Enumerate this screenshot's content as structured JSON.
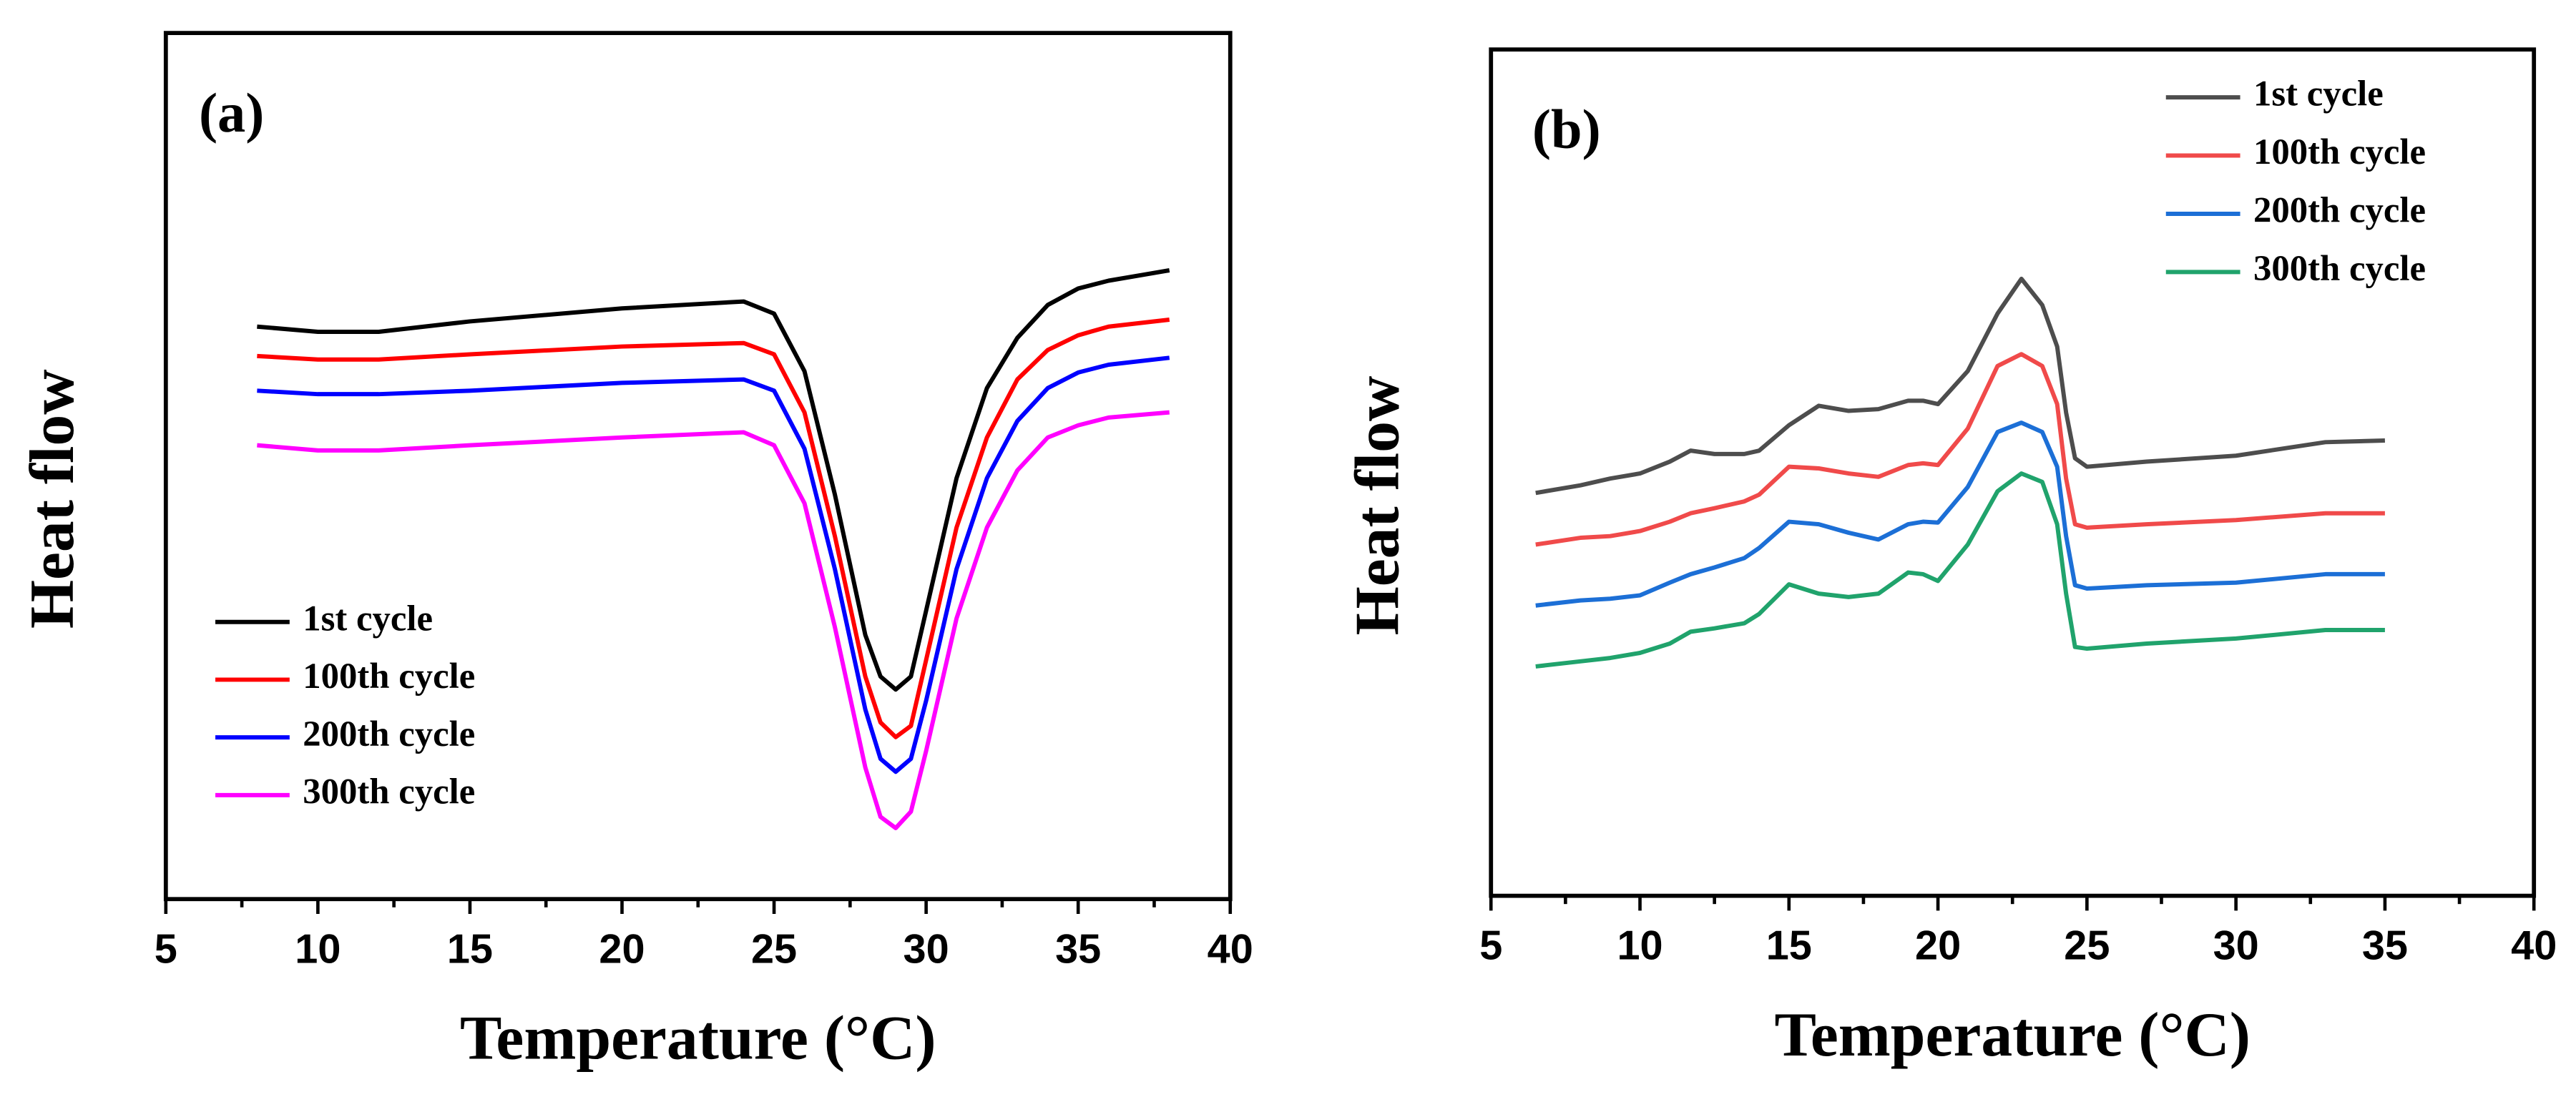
{
  "chart_data": [
    {
      "type": "line",
      "panel_label": "(a)",
      "x_label": "Temperature (°C)",
      "y_label": "Heat flow",
      "xlim": [
        5,
        40
      ],
      "xticks": [
        5,
        10,
        15,
        20,
        25,
        30,
        35,
        40
      ],
      "ylim": [
        0,
        100
      ],
      "legend": "lower left",
      "x": [
        8,
        10,
        12,
        15,
        20,
        24,
        25,
        26,
        27,
        28,
        28.5,
        29,
        29.5,
        30,
        31,
        32,
        33,
        34,
        35,
        36,
        38
      ],
      "series": [
        {
          "name": "1st cycle",
          "color": "#000000",
          "values": [
            66.1,
            65.5,
            65.5,
            66.7,
            68.2,
            69.0,
            67.6,
            60.95,
            46.7,
            30.5,
            25.7,
            24.2,
            25.7,
            33.3,
            48.6,
            59.0,
            64.8,
            68.6,
            70.5,
            71.4,
            72.6
          ]
        },
        {
          "name": "100th cycle",
          "color": "#ff0000",
          "values": [
            62.7,
            62.3,
            62.3,
            62.9,
            63.8,
            64.2,
            62.9,
            56.2,
            41.9,
            25.7,
            20.4,
            18.7,
            20.0,
            27.6,
            42.9,
            53.3,
            60.0,
            63.4,
            65.1,
            66.1,
            66.9
          ]
        },
        {
          "name": "200th cycle",
          "color": "#0000ff",
          "values": [
            58.7,
            58.3,
            58.3,
            58.7,
            59.6,
            60.0,
            58.7,
            52.0,
            38.1,
            21.9,
            16.2,
            14.7,
            16.2,
            22.9,
            38.1,
            48.6,
            55.2,
            59.0,
            60.8,
            61.7,
            62.5
          ]
        },
        {
          "name": "300th cycle",
          "color": "#ff00ff",
          "values": [
            52.4,
            51.8,
            51.8,
            52.4,
            53.3,
            53.9,
            52.4,
            45.7,
            31.4,
            15.2,
            9.5,
            8.2,
            10.1,
            17.1,
            32.4,
            42.9,
            49.5,
            53.3,
            54.7,
            55.6,
            56.2
          ]
        }
      ]
    },
    {
      "type": "line",
      "panel_label": "(b)",
      "x_label": "Temperature (°C)",
      "y_label": "Heat flow",
      "xlim": [
        5,
        40
      ],
      "xticks": [
        5,
        10,
        15,
        20,
        25,
        30,
        35,
        40
      ],
      "ylim": [
        0,
        100
      ],
      "legend": "upper right",
      "x": [
        6.5,
        8,
        9,
        10,
        11,
        11.7,
        12.5,
        13.5,
        14,
        15,
        16,
        17,
        18,
        19,
        19.5,
        20,
        21,
        22,
        22.8,
        23.5,
        24,
        24.3,
        24.6,
        25,
        27,
        30,
        33,
        35
      ],
      "series": [
        {
          "name": "1st cycle",
          "color": "#4d4d4d",
          "values": [
            47.6,
            48.5,
            49.3,
            49.9,
            51.3,
            52.6,
            52.2,
            52.2,
            52.6,
            55.6,
            57.9,
            57.3,
            57.5,
            58.5,
            58.5,
            58.1,
            62.0,
            68.8,
            72.9,
            69.8,
            64.9,
            57.1,
            51.7,
            50.7,
            51.3,
            52.0,
            53.6,
            53.8
          ]
        },
        {
          "name": "100th cycle",
          "color": "#f04a4a",
          "values": [
            41.5,
            42.3,
            42.5,
            43.1,
            44.2,
            45.2,
            45.8,
            46.6,
            47.4,
            50.7,
            50.5,
            49.9,
            49.5,
            50.9,
            51.1,
            50.9,
            55.2,
            62.6,
            64.0,
            62.6,
            58.1,
            49.3,
            43.9,
            43.5,
            43.9,
            44.4,
            45.2,
            45.2
          ]
        },
        {
          "name": "200th cycle",
          "color": "#1c6fd6",
          "values": [
            34.3,
            34.9,
            35.1,
            35.5,
            37.0,
            38.0,
            38.8,
            39.9,
            41.1,
            44.2,
            43.9,
            42.9,
            42.1,
            43.9,
            44.2,
            44.1,
            48.3,
            54.8,
            55.9,
            54.8,
            50.7,
            42.5,
            36.7,
            36.3,
            36.7,
            37.0,
            38.0,
            38.0
          ]
        },
        {
          "name": "300th cycle",
          "color": "#20a36c",
          "values": [
            27.1,
            27.7,
            28.1,
            28.7,
            29.8,
            31.2,
            31.6,
            32.2,
            33.3,
            36.8,
            35.7,
            35.3,
            35.7,
            38.2,
            38.0,
            37.2,
            41.5,
            47.8,
            49.9,
            48.9,
            43.9,
            35.7,
            29.4,
            29.2,
            29.8,
            30.4,
            31.4,
            31.4
          ]
        }
      ]
    }
  ]
}
